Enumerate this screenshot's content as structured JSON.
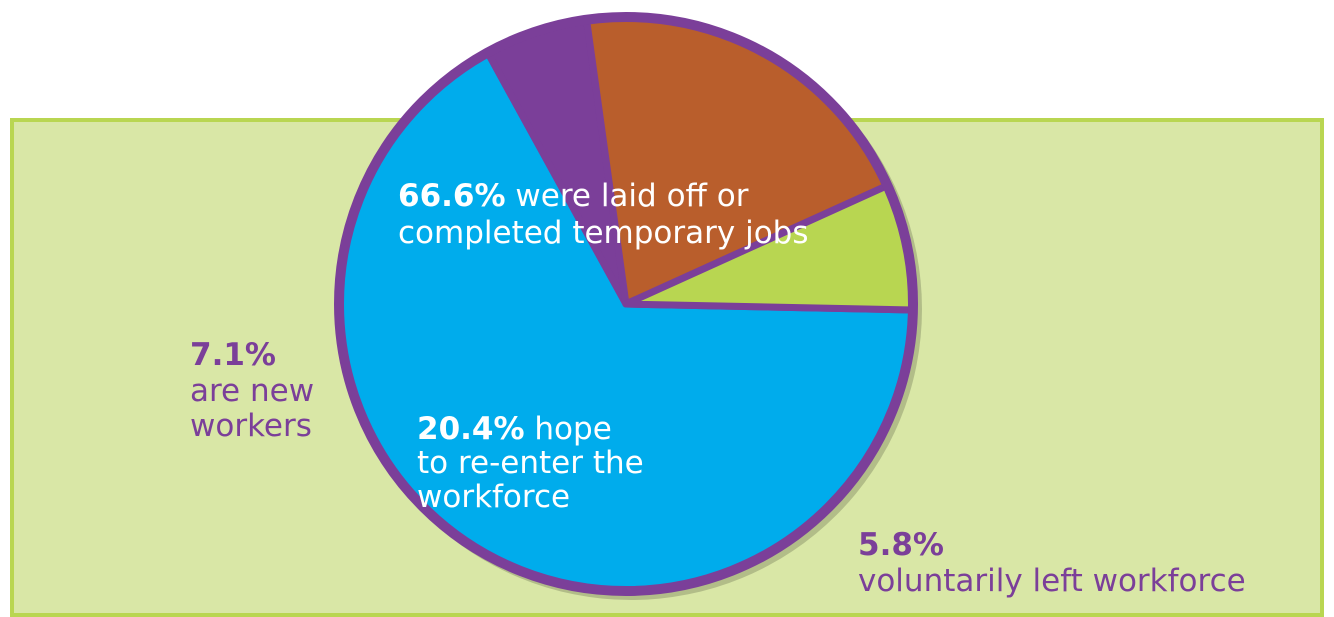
{
  "chart_data": {
    "type": "pie",
    "title": "",
    "slices": [
      {
        "label": "were laid off or completed temporary jobs",
        "value": 66.6,
        "value_label": "66.6%",
        "color": "#00acec"
      },
      {
        "label": "voluntarily left workforce",
        "value": 5.8,
        "value_label": "5.8%",
        "color": "#7b3f99"
      },
      {
        "label": "hope to re-enter the workforce",
        "value": 20.4,
        "value_label": "20.4%",
        "color": "#b95e2c"
      },
      {
        "label": "are new workers",
        "value": 7.1,
        "value_label": "7.1%",
        "color": "#b8d651"
      }
    ],
    "border_color": "#7b3f99",
    "background_color": "#d9e7a6"
  },
  "labels": {
    "laid_off_pct": "66.6%",
    "laid_off_text": "were laid off or",
    "laid_off_text2": "completed temporary jobs",
    "reenter_pct": "20.4%",
    "reenter_text": "hope",
    "reenter_text2": "to re-enter the",
    "reenter_text3": "workforce",
    "new_pct": "7.1%",
    "new_text": "are new",
    "new_text2": "workers",
    "vol_pct": "5.8%",
    "vol_text": "voluntarily left workforce"
  }
}
